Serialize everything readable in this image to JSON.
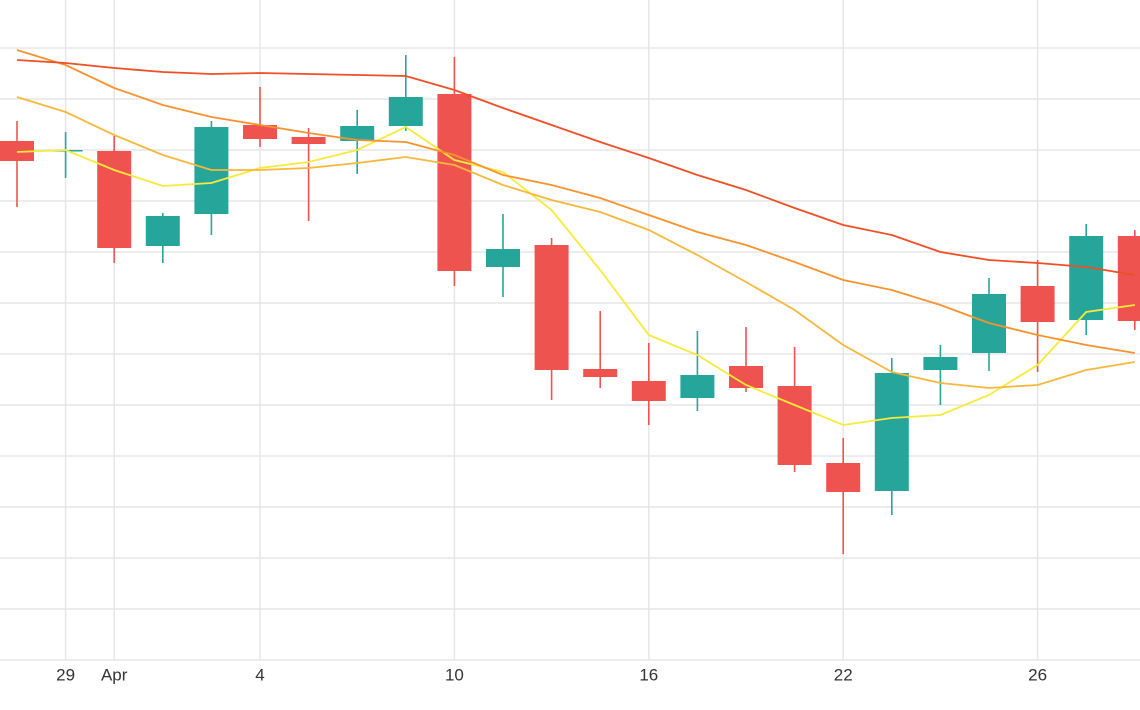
{
  "chart_data": {
    "type": "candlestick",
    "categories": [
      null,
      "29",
      "Apr",
      null,
      null,
      "4",
      null,
      null,
      null,
      "10",
      null,
      null,
      null,
      "16",
      null,
      null,
      null,
      "22",
      null,
      null,
      null,
      "26",
      null,
      null
    ],
    "open": [
      519,
      509,
      509,
      414,
      446,
      535,
      523,
      519,
      534,
      566,
      393,
      415,
      291,
      279,
      262,
      294,
      274,
      197,
      169,
      290,
      307,
      374,
      340,
      424
    ],
    "high": [
      539,
      528,
      524,
      447,
      539,
      573,
      532,
      550,
      605,
      603,
      446,
      422,
      349,
      317,
      329,
      333,
      313,
      222,
      302,
      315,
      382,
      400,
      436,
      430
    ],
    "low": [
      453,
      482,
      397,
      397,
      425,
      513,
      439,
      486,
      529,
      374,
      363,
      260,
      272,
      235,
      249,
      268,
      188,
      106,
      145,
      255,
      289,
      288,
      325,
      330
    ],
    "close": [
      499,
      510,
      412,
      444,
      533,
      521,
      516,
      534,
      563,
      389,
      411,
      290,
      283,
      259,
      285,
      272,
      195,
      168,
      287,
      303,
      366,
      338,
      424,
      339
    ],
    "up_color": "#26a69a",
    "down_color": "#ef5350",
    "series": [
      {
        "color": "#f7ea3a",
        "values": [
          508,
          510,
          490,
          474,
          477,
          492,
          498,
          510,
          533,
          500,
          488,
          450,
          390,
          325,
          305,
          275,
          255,
          235,
          242,
          245,
          265,
          295,
          348,
          355
        ]
      },
      {
        "color": "#f6b83c",
        "values": [
          563,
          548,
          525,
          505,
          490,
          490,
          492,
          497,
          503,
          495,
          475,
          460,
          448,
          430,
          405,
          378,
          350,
          315,
          288,
          277,
          272,
          275,
          290,
          298
        ]
      },
      {
        "color": "#f7922e",
        "values": [
          610,
          595,
          572,
          555,
          543,
          535,
          527,
          520,
          518,
          505,
          485,
          475,
          462,
          445,
          428,
          415,
          398,
          380,
          370,
          355,
          337,
          325,
          315,
          307
        ]
      },
      {
        "color": "#ee4f24",
        "values": [
          600,
          597,
          592,
          588,
          586,
          587,
          586,
          585,
          584,
          570,
          552,
          535,
          518,
          502,
          485,
          470,
          452,
          435,
          425,
          408,
          400,
          397,
          393,
          385
        ]
      }
    ],
    "ylim": [
      0,
      660
    ],
    "yticks": [
      0,
      51,
      102,
      153,
      204,
      255,
      306,
      357,
      408,
      459,
      510,
      561,
      612
    ],
    "grid": true
  }
}
